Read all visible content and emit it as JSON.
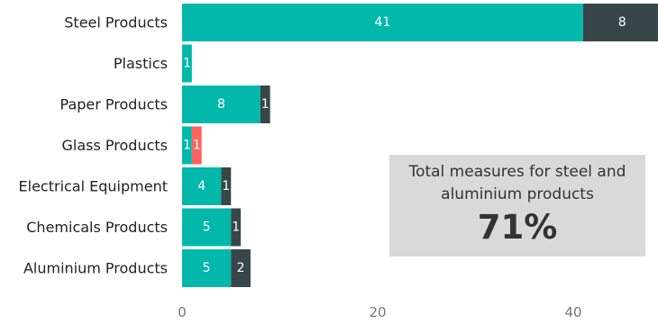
{
  "chart_data": {
    "type": "bar",
    "orientation": "horizontal",
    "stacked": true,
    "categories": [
      "Steel Products",
      "Plastics",
      "Paper Products",
      "Glass Products",
      "Electrical Equipment",
      "Chemicals Products",
      "Aluminium Products"
    ],
    "series": [
      {
        "values": [
          41,
          1,
          8,
          1,
          4,
          5,
          5
        ],
        "color": "#01b8aa"
      },
      {
        "values": [
          8,
          0,
          1,
          0,
          1,
          1,
          2
        ],
        "color": "#374649"
      },
      {
        "values": [
          0,
          0,
          0,
          1,
          0,
          0,
          0
        ],
        "color": "#fd625e"
      }
    ],
    "xticks": [
      0,
      20,
      40
    ],
    "xlim": [
      0,
      50
    ],
    "grid": false,
    "legend": "none"
  },
  "callout": {
    "text": "Total measures for steel and aluminium products",
    "value": "71%"
  }
}
